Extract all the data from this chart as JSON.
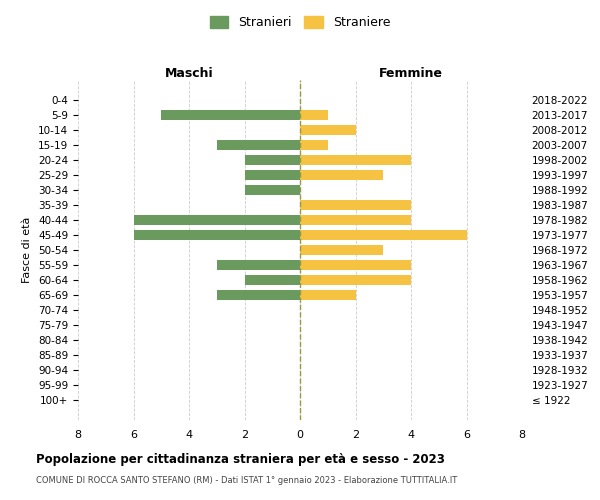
{
  "age_groups": [
    "100+",
    "95-99",
    "90-94",
    "85-89",
    "80-84",
    "75-79",
    "70-74",
    "65-69",
    "60-64",
    "55-59",
    "50-54",
    "45-49",
    "40-44",
    "35-39",
    "30-34",
    "25-29",
    "20-24",
    "15-19",
    "10-14",
    "5-9",
    "0-4"
  ],
  "birth_years": [
    "≤ 1922",
    "1923-1927",
    "1928-1932",
    "1933-1937",
    "1938-1942",
    "1943-1947",
    "1948-1952",
    "1953-1957",
    "1958-1962",
    "1963-1967",
    "1968-1972",
    "1973-1977",
    "1978-1982",
    "1983-1987",
    "1988-1992",
    "1993-1997",
    "1998-2002",
    "2003-2007",
    "2008-2012",
    "2013-2017",
    "2018-2022"
  ],
  "maschi": [
    0,
    0,
    0,
    0,
    0,
    0,
    0,
    3,
    2,
    3,
    0,
    6,
    6,
    0,
    2,
    2,
    2,
    3,
    0,
    5,
    0
  ],
  "femmine": [
    0,
    0,
    0,
    0,
    0,
    0,
    0,
    2,
    4,
    4,
    3,
    6,
    4,
    4,
    0,
    3,
    4,
    1,
    2,
    1,
    0
  ],
  "color_maschi": "#6a9a5e",
  "color_femmine": "#f5c242",
  "title": "Popolazione per cittadinanza straniera per età e sesso - 2023",
  "subtitle": "COMUNE DI ROCCA SANTO STEFANO (RM) - Dati ISTAT 1° gennaio 2023 - Elaborazione TUTTITALIA.IT",
  "xlabel_left": "Maschi",
  "xlabel_right": "Femmine",
  "ylabel_left": "Fasce di età",
  "legend_maschi": "Stranieri",
  "legend_femmine": "Straniere",
  "xlim": 8,
  "background_color": "#ffffff",
  "grid_color": "#cccccc"
}
